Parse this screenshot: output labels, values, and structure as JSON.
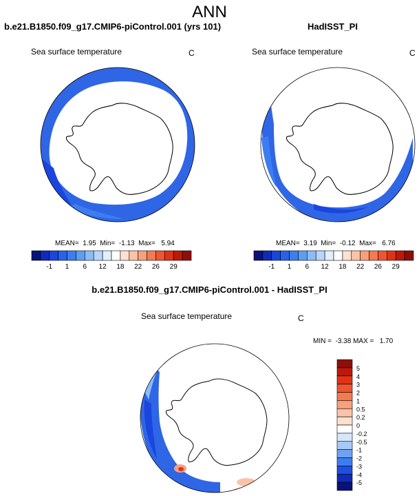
{
  "title": "ANN",
  "panels": [
    {
      "case": "b.e21.B1850.f09_g17.CMIP6-piControl.001 (yrs 101)",
      "variable": "Sea surface temperature",
      "units": "C",
      "stats": "MEAN=  1.95  Min=  -1.13  Max=   5.94"
    },
    {
      "case": "HadISST_PI",
      "variable": "Sea surface temperature",
      "units": "C",
      "stats": "MEAN=  3.19  Min=  -0.12  Max=   6.76"
    }
  ],
  "difference": {
    "title": "b.e21.B1850.f09_g17.CMIP6-piControl.001 - HadISST_PI",
    "variable": "Sea surface temperature",
    "units": "C",
    "stats": "MIN =  -3.38 MAX =   1.70"
  },
  "chart_data": [
    {
      "type": "heatmap",
      "title": "Sea surface temperature",
      "units": "C",
      "colorbar_labels": [
        "-1",
        "1",
        "6",
        "12",
        "18",
        "22",
        "26",
        "29"
      ],
      "colorbar_colors": [
        "#08127a",
        "#0f2bb8",
        "#1a46de",
        "#2861ea",
        "#3c7ef0",
        "#5f9cf3",
        "#8bbcf6",
        "#b7d6f9",
        "#e3efff",
        "#ffffff",
        "#fde0d0",
        "#fbc3a8",
        "#f8a07d",
        "#f47a52",
        "#ef5530",
        "#e03316",
        "#bb1a0a",
        "#8e0f08"
      ],
      "stats": {
        "mean": 1.95,
        "min": -1.13,
        "max": 5.94
      }
    },
    {
      "type": "heatmap",
      "title": "Sea surface temperature",
      "units": "C",
      "colorbar_labels": [
        "-1",
        "1",
        "6",
        "12",
        "18",
        "22",
        "26",
        "29"
      ],
      "colorbar_colors": [
        "#08127a",
        "#0f2bb8",
        "#1a46de",
        "#2861ea",
        "#3c7ef0",
        "#5f9cf3",
        "#8bbcf6",
        "#b7d6f9",
        "#e3efff",
        "#ffffff",
        "#fde0d0",
        "#fbc3a8",
        "#f8a07d",
        "#f47a52",
        "#ef5530",
        "#e03316",
        "#bb1a0a",
        "#8e0f08"
      ],
      "stats": {
        "mean": 3.19,
        "min": -0.12,
        "max": 6.76
      }
    },
    {
      "type": "heatmap",
      "title": "Sea surface temperature",
      "units": "C",
      "colorbar_labels": [
        "5",
        "4",
        "3",
        "2",
        "1",
        "0.5",
        "0.2",
        "0",
        "-0.2",
        "-0.5",
        "-1",
        "-2",
        "-3",
        "-4",
        "-5"
      ],
      "colorbar_colors": [
        "#8e0f08",
        "#bb1a0a",
        "#e03316",
        "#ef5530",
        "#f47a52",
        "#f8a07d",
        "#fbc3a8",
        "#fde0d0",
        "#ffffff",
        "#d6e6fb",
        "#a8c9f6",
        "#6ea3f1",
        "#3c7ef0",
        "#1f4fe0",
        "#0f2bb8",
        "#08127a"
      ],
      "stats": {
        "min": -3.38,
        "max": 1.7
      }
    }
  ]
}
